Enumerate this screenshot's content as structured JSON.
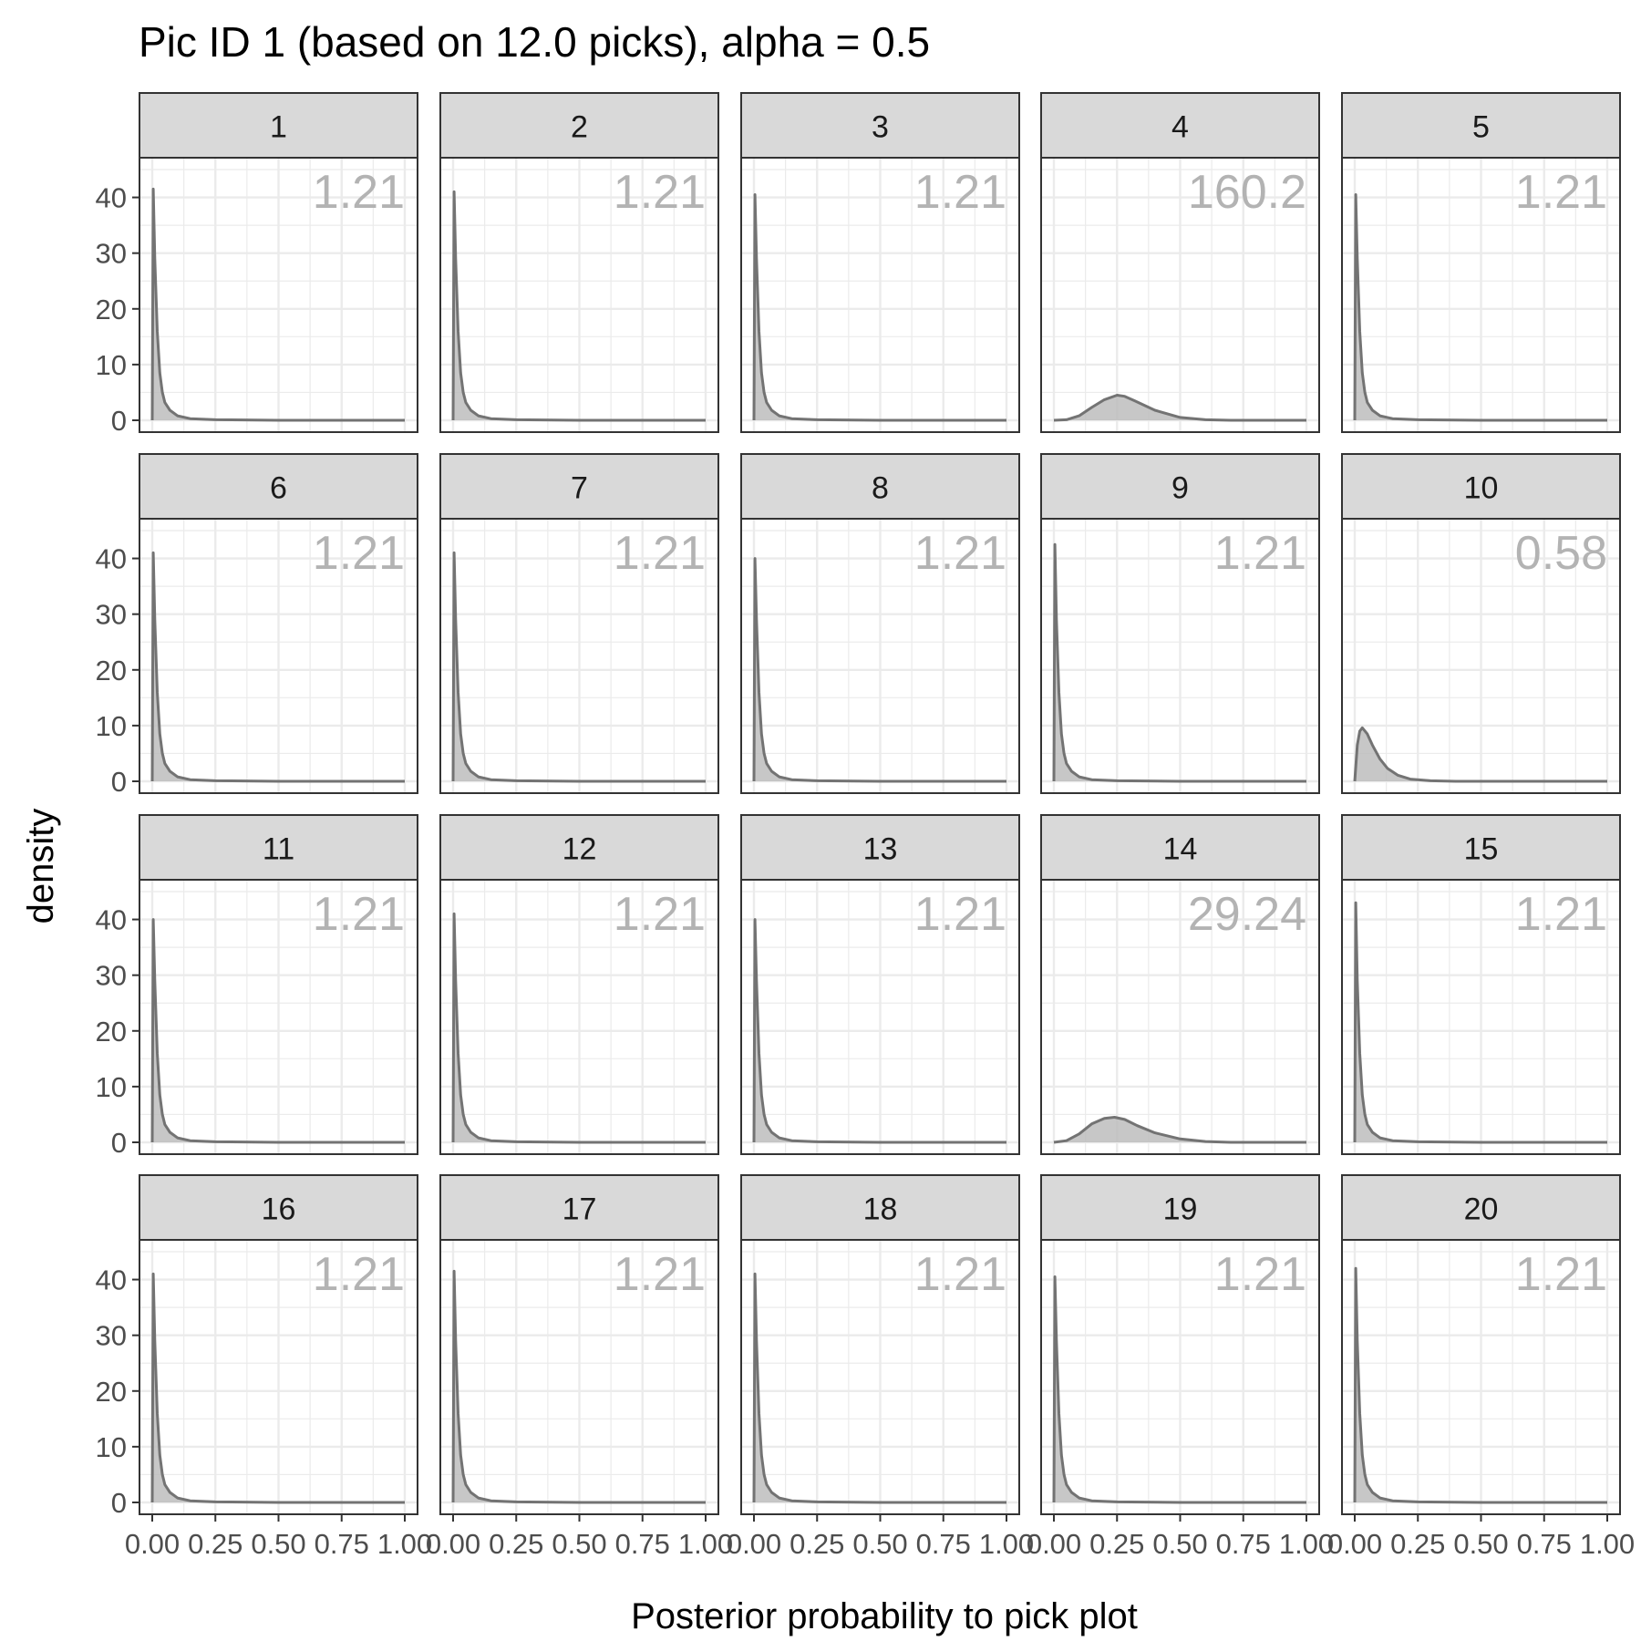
{
  "chart_data": {
    "type": "area",
    "title": "Pic ID 1 (based on 12.0 picks), alpha = 0.5",
    "xlabel": "Posterior probability to pick plot",
    "ylabel": "density",
    "xlim": [
      0,
      1
    ],
    "ylim": [
      0,
      45
    ],
    "x_ticks": [
      "0.00",
      "0.25",
      "0.50",
      "0.75",
      "1.00"
    ],
    "y_ticks": [
      "0",
      "10",
      "20",
      "30",
      "40"
    ],
    "grid": true,
    "facets_per_row": 5,
    "fill_color": "#bdbdbd",
    "line_color": "#737373",
    "annotation_color": "#b3b3b3",
    "strip_color": "#d9d9d9",
    "panels": [
      {
        "label": "1",
        "annotation": "1.21",
        "x": [
          0,
          0.004,
          0.01,
          0.02,
          0.03,
          0.04,
          0.05,
          0.07,
          0.1,
          0.15,
          0.25,
          0.5,
          1.0
        ],
        "y": [
          0,
          41.5,
          29,
          16,
          8.5,
          5,
          3.2,
          1.8,
          0.8,
          0.3,
          0.1,
          0,
          0
        ]
      },
      {
        "label": "2",
        "annotation": "1.21",
        "x": [
          0,
          0.004,
          0.01,
          0.02,
          0.03,
          0.04,
          0.05,
          0.07,
          0.1,
          0.15,
          0.25,
          0.5,
          1.0
        ],
        "y": [
          0,
          41,
          29,
          16,
          8.5,
          5,
          3.2,
          1.8,
          0.8,
          0.3,
          0.1,
          0,
          0
        ]
      },
      {
        "label": "3",
        "annotation": "1.21",
        "x": [
          0,
          0.004,
          0.01,
          0.02,
          0.03,
          0.04,
          0.05,
          0.07,
          0.1,
          0.15,
          0.25,
          0.5,
          1.0
        ],
        "y": [
          0,
          40.5,
          29,
          16,
          8.5,
          5,
          3.2,
          1.8,
          0.8,
          0.3,
          0.1,
          0,
          0
        ]
      },
      {
        "label": "4",
        "annotation": "160.2",
        "x": [
          0,
          0.05,
          0.1,
          0.15,
          0.2,
          0.25,
          0.28,
          0.32,
          0.4,
          0.5,
          0.6,
          0.7,
          1.0
        ],
        "y": [
          0,
          0.1,
          0.8,
          2.3,
          3.7,
          4.5,
          4.3,
          3.5,
          1.8,
          0.5,
          0.1,
          0,
          0
        ]
      },
      {
        "label": "5",
        "annotation": "1.21",
        "x": [
          0,
          0.004,
          0.01,
          0.02,
          0.03,
          0.04,
          0.05,
          0.07,
          0.1,
          0.15,
          0.25,
          0.5,
          1.0
        ],
        "y": [
          0,
          40.5,
          29,
          16,
          8.5,
          5,
          3.2,
          1.8,
          0.8,
          0.3,
          0.1,
          0,
          0
        ]
      },
      {
        "label": "6",
        "annotation": "1.21",
        "x": [
          0,
          0.004,
          0.01,
          0.02,
          0.03,
          0.04,
          0.05,
          0.07,
          0.1,
          0.15,
          0.25,
          0.5,
          1.0
        ],
        "y": [
          0,
          41,
          29,
          16,
          8.5,
          5,
          3.2,
          1.8,
          0.8,
          0.3,
          0.1,
          0,
          0
        ]
      },
      {
        "label": "7",
        "annotation": "1.21",
        "x": [
          0,
          0.004,
          0.01,
          0.02,
          0.03,
          0.04,
          0.05,
          0.07,
          0.1,
          0.15,
          0.25,
          0.5,
          1.0
        ],
        "y": [
          0,
          41,
          29,
          16,
          8.5,
          5,
          3.2,
          1.8,
          0.8,
          0.3,
          0.1,
          0,
          0
        ]
      },
      {
        "label": "8",
        "annotation": "1.21",
        "x": [
          0,
          0.004,
          0.01,
          0.02,
          0.03,
          0.04,
          0.05,
          0.07,
          0.1,
          0.15,
          0.25,
          0.5,
          1.0
        ],
        "y": [
          0,
          40,
          29,
          16,
          8.5,
          5,
          3.2,
          1.8,
          0.8,
          0.3,
          0.1,
          0,
          0
        ]
      },
      {
        "label": "9",
        "annotation": "1.21",
        "x": [
          0,
          0.004,
          0.01,
          0.02,
          0.03,
          0.04,
          0.05,
          0.07,
          0.1,
          0.15,
          0.25,
          0.5,
          1.0
        ],
        "y": [
          0,
          42.5,
          29,
          16,
          8.5,
          5,
          3.2,
          1.8,
          0.8,
          0.3,
          0.1,
          0,
          0
        ]
      },
      {
        "label": "10",
        "annotation": "0.58",
        "x": [
          0,
          0.01,
          0.02,
          0.03,
          0.05,
          0.07,
          0.1,
          0.13,
          0.17,
          0.22,
          0.3,
          0.4,
          1.0
        ],
        "y": [
          0,
          6.5,
          9,
          9.6,
          8.5,
          6.5,
          4,
          2.3,
          1.1,
          0.4,
          0.1,
          0,
          0
        ]
      },
      {
        "label": "11",
        "annotation": "1.21",
        "x": [
          0,
          0.004,
          0.01,
          0.02,
          0.03,
          0.04,
          0.05,
          0.07,
          0.1,
          0.15,
          0.25,
          0.5,
          1.0
        ],
        "y": [
          0,
          40,
          29,
          16,
          8.5,
          5,
          3.2,
          1.8,
          0.8,
          0.3,
          0.1,
          0,
          0
        ]
      },
      {
        "label": "12",
        "annotation": "1.21",
        "x": [
          0,
          0.004,
          0.01,
          0.02,
          0.03,
          0.04,
          0.05,
          0.07,
          0.1,
          0.15,
          0.25,
          0.5,
          1.0
        ],
        "y": [
          0,
          41,
          29,
          16,
          8.5,
          5,
          3.2,
          1.8,
          0.8,
          0.3,
          0.1,
          0,
          0
        ]
      },
      {
        "label": "13",
        "annotation": "1.21",
        "x": [
          0,
          0.004,
          0.01,
          0.02,
          0.03,
          0.04,
          0.05,
          0.07,
          0.1,
          0.15,
          0.25,
          0.5,
          1.0
        ],
        "y": [
          0,
          40,
          29,
          16,
          8.5,
          5,
          3.2,
          1.8,
          0.8,
          0.3,
          0.1,
          0,
          0
        ]
      },
      {
        "label": "14",
        "annotation": "29.24",
        "x": [
          0,
          0.05,
          0.1,
          0.15,
          0.2,
          0.24,
          0.28,
          0.33,
          0.4,
          0.5,
          0.6,
          0.7,
          1.0
        ],
        "y": [
          0,
          0.3,
          1.5,
          3.3,
          4.3,
          4.5,
          4.1,
          3.0,
          1.7,
          0.6,
          0.15,
          0,
          0
        ]
      },
      {
        "label": "15",
        "annotation": "1.21",
        "x": [
          0,
          0.004,
          0.01,
          0.02,
          0.03,
          0.04,
          0.05,
          0.07,
          0.1,
          0.15,
          0.25,
          0.5,
          1.0
        ],
        "y": [
          0,
          43,
          29,
          16,
          8.5,
          5,
          3.2,
          1.8,
          0.8,
          0.3,
          0.1,
          0,
          0
        ]
      },
      {
        "label": "16",
        "annotation": "1.21",
        "x": [
          0,
          0.004,
          0.01,
          0.02,
          0.03,
          0.04,
          0.05,
          0.07,
          0.1,
          0.15,
          0.25,
          0.5,
          1.0
        ],
        "y": [
          0,
          41,
          29,
          16,
          8.5,
          5,
          3.2,
          1.8,
          0.8,
          0.3,
          0.1,
          0,
          0
        ]
      },
      {
        "label": "17",
        "annotation": "1.21",
        "x": [
          0,
          0.004,
          0.01,
          0.02,
          0.03,
          0.04,
          0.05,
          0.07,
          0.1,
          0.15,
          0.25,
          0.5,
          1.0
        ],
        "y": [
          0,
          41.5,
          29,
          16,
          8.5,
          5,
          3.2,
          1.8,
          0.8,
          0.3,
          0.1,
          0,
          0
        ]
      },
      {
        "label": "18",
        "annotation": "1.21",
        "x": [
          0,
          0.004,
          0.01,
          0.02,
          0.03,
          0.04,
          0.05,
          0.07,
          0.1,
          0.15,
          0.25,
          0.5,
          1.0
        ],
        "y": [
          0,
          41,
          29,
          16,
          8.5,
          5,
          3.2,
          1.8,
          0.8,
          0.3,
          0.1,
          0,
          0
        ]
      },
      {
        "label": "19",
        "annotation": "1.21",
        "x": [
          0,
          0.004,
          0.01,
          0.02,
          0.03,
          0.04,
          0.05,
          0.07,
          0.1,
          0.15,
          0.25,
          0.5,
          1.0
        ],
        "y": [
          0,
          40.5,
          29,
          16,
          8.5,
          5,
          3.2,
          1.8,
          0.8,
          0.3,
          0.1,
          0,
          0
        ]
      },
      {
        "label": "20",
        "annotation": "1.21",
        "x": [
          0,
          0.004,
          0.01,
          0.02,
          0.03,
          0.04,
          0.05,
          0.07,
          0.1,
          0.15,
          0.25,
          0.5,
          1.0
        ],
        "y": [
          0,
          42,
          29,
          16,
          8.5,
          5,
          3.2,
          1.8,
          0.8,
          0.3,
          0.1,
          0,
          0
        ]
      }
    ]
  }
}
